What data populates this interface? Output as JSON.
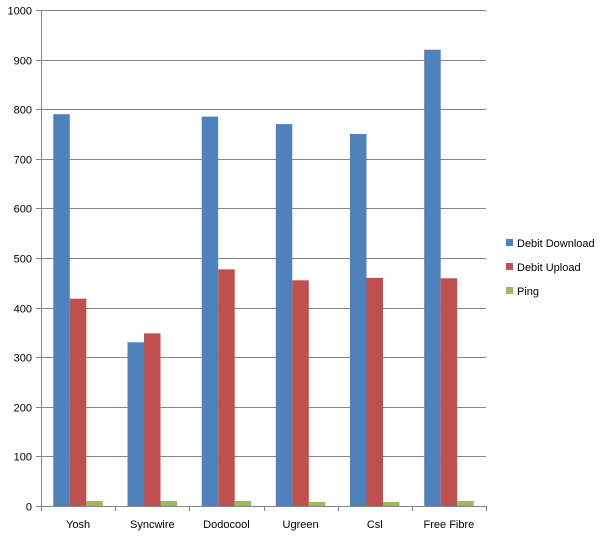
{
  "chart_data": {
    "type": "bar",
    "title": "",
    "xlabel": "",
    "ylabel": "",
    "categories": [
      "Yosh",
      "Syncwire",
      "Dodocool",
      "Ugreen",
      "Csl",
      "Free Fibre"
    ],
    "series": [
      {
        "name": "Debit Download",
        "color": "#4f81bd",
        "values": [
          790,
          330,
          785,
          770,
          750,
          920
        ]
      },
      {
        "name": "Debit Upload",
        "color": "#c0504d",
        "values": [
          418,
          348,
          477,
          455,
          460,
          459
        ]
      },
      {
        "name": "Ping",
        "color": "#9bbb59",
        "values": [
          10,
          10,
          10,
          8,
          8,
          10
        ]
      }
    ],
    "ylim": [
      0,
      1000
    ],
    "yticks": [
      0,
      100,
      200,
      300,
      400,
      500,
      600,
      700,
      800,
      900,
      1000
    ],
    "grid": true,
    "legend_position": "right"
  }
}
